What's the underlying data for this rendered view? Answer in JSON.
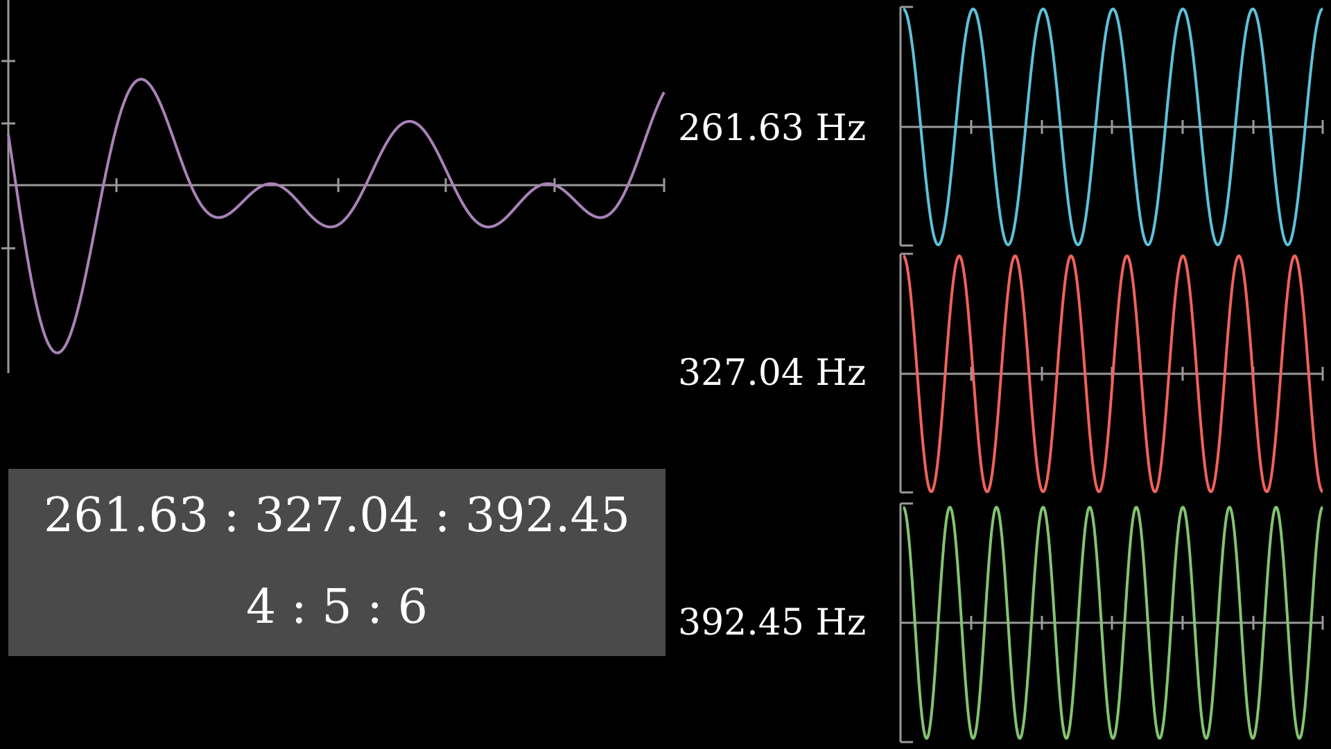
{
  "chart_data": [
    {
      "type": "line",
      "title": "",
      "xlabel": "",
      "ylabel": "",
      "series": [
        {
          "frequency_hz": 261.63,
          "color": "#a982b8"
        },
        {
          "frequency_hz": 327.04,
          "color": "#a982b8"
        },
        {
          "frequency_hz": 392.45,
          "color": "#a982b8"
        }
      ],
      "combined": true,
      "color": "#a982b8",
      "axes": true,
      "grid": false
    },
    {
      "type": "line",
      "series": [
        {
          "name": "261.63 Hz",
          "frequency_hz": 261.63,
          "color": "#5fc0da"
        }
      ],
      "axes": true,
      "grid": false
    },
    {
      "type": "line",
      "series": [
        {
          "name": "327.04 Hz",
          "frequency_hz": 327.04,
          "color": "#f0625a"
        }
      ],
      "axes": true,
      "grid": false
    },
    {
      "type": "line",
      "series": [
        {
          "name": "392.45 Hz",
          "frequency_hz": 392.45,
          "color": "#83c470"
        }
      ],
      "axes": true,
      "grid": false
    }
  ],
  "labels": {
    "freq1": "261.63 Hz",
    "freq2": "327.04 Hz",
    "freq3": "392.45 Hz"
  },
  "ratio_box": {
    "line1": "261.63 : 327.04 : 392.45",
    "line2": "4 : 5 : 6"
  },
  "colors": {
    "background": "#000000",
    "axis": "#9a9a9a",
    "box": "#4a4a4a",
    "text": "#ffffff"
  }
}
